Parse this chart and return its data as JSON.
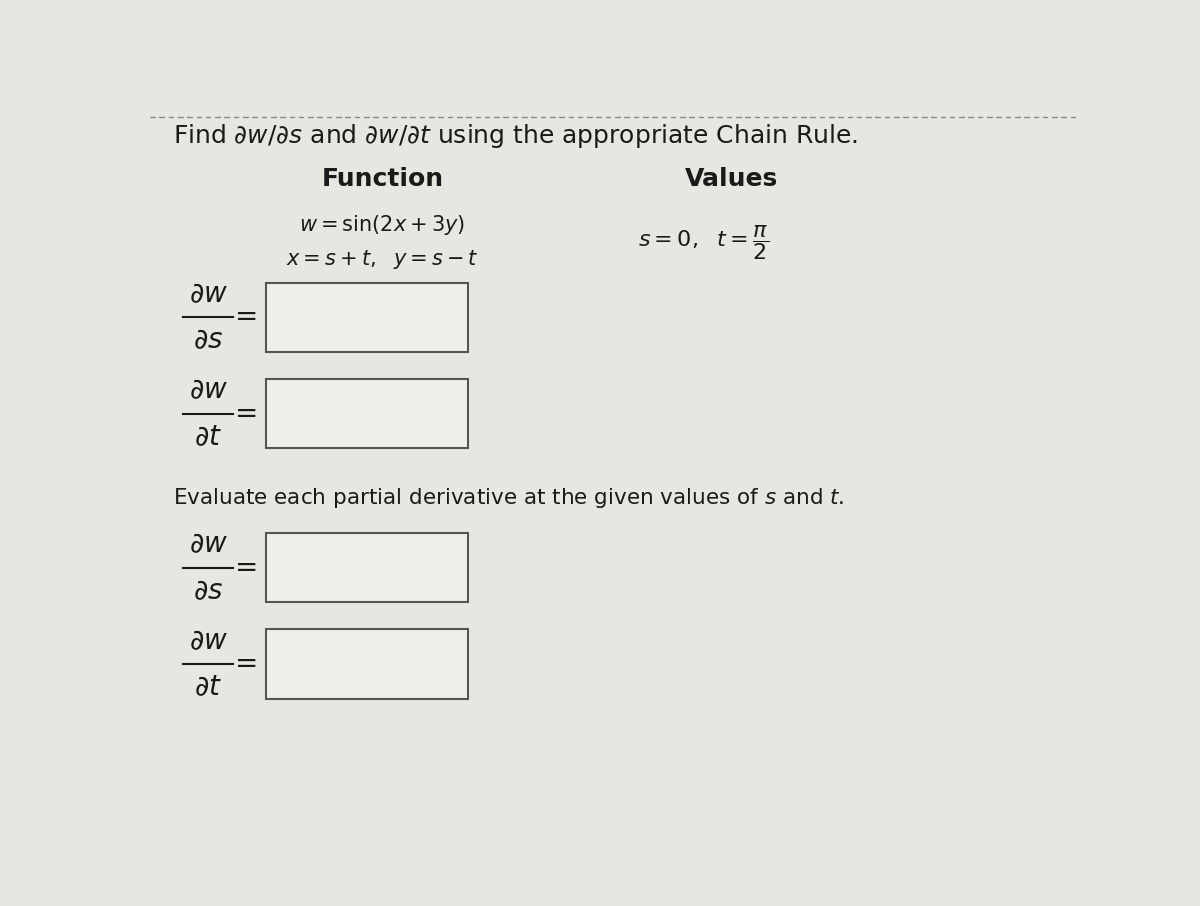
{
  "bg_color": "#e8e6e0",
  "box_color": "#f0eeea",
  "box_border": "#555555",
  "text_color": "#1a1a1a",
  "red_color": "#cc0000",
  "figsize": [
    12.0,
    9.06
  ],
  "dpi": 100,
  "dot_color": "#888888"
}
